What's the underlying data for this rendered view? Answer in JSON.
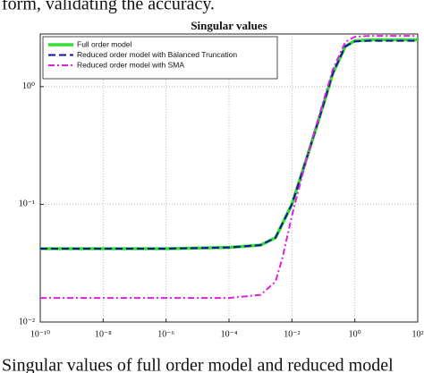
{
  "text_top": "form, validating the accuracy.",
  "caption": "Singular values of full order model and reduced model",
  "chart_data": {
    "type": "line",
    "title": "Singular values",
    "xscale": "log",
    "yscale": "log",
    "grid": true,
    "legend": "upper left",
    "xlim": [
      1e-10,
      100
    ],
    "ylim": [
      0.01,
      2.8
    ],
    "xticks": [
      {
        "value": 1e-10,
        "label": "10⁻¹⁰"
      },
      {
        "value": 1e-08,
        "label": "10⁻⁸"
      },
      {
        "value": 1e-06,
        "label": "10⁻⁶"
      },
      {
        "value": 0.0001,
        "label": "10⁻⁴"
      },
      {
        "value": 0.01,
        "label": "10⁻²"
      },
      {
        "value": 1,
        "label": "10⁰"
      },
      {
        "value": 100,
        "label": "10²"
      }
    ],
    "yticks": [
      {
        "value": 0.01,
        "label": "10⁻²"
      },
      {
        "value": 0.1,
        "label": "10⁻¹"
      },
      {
        "value": 1,
        "label": "10⁰"
      }
    ],
    "series": [
      {
        "name": "Full order model",
        "color": "#33dd33",
        "style": "solid",
        "x": [
          1e-10,
          1e-08,
          1e-06,
          0.0001,
          0.001,
          0.003,
          0.01,
          0.03,
          0.1,
          0.2,
          0.5,
          1,
          3,
          10,
          100
        ],
        "values": [
          0.042,
          0.042,
          0.042,
          0.043,
          0.045,
          0.052,
          0.1,
          0.25,
          0.7,
          1.3,
          2.2,
          2.45,
          2.5,
          2.5,
          2.5
        ]
      },
      {
        "name": "Reduced order model with Balanced Truncation",
        "color": "#1010a0",
        "style": "dashed",
        "x": [
          1e-10,
          1e-08,
          1e-06,
          0.0001,
          0.001,
          0.003,
          0.01,
          0.03,
          0.1,
          0.2,
          0.5,
          1,
          3,
          10,
          100
        ],
        "values": [
          0.042,
          0.042,
          0.042,
          0.043,
          0.045,
          0.052,
          0.1,
          0.25,
          0.7,
          1.3,
          2.2,
          2.42,
          2.45,
          2.45,
          2.45
        ]
      },
      {
        "name": "Reduced order model with SMA",
        "color": "#e020e0",
        "style": "dashdot",
        "x": [
          1e-10,
          1e-08,
          1e-06,
          0.0001,
          0.001,
          0.003,
          0.005,
          0.01,
          0.03,
          0.1,
          0.2,
          0.5,
          1,
          3,
          10,
          100
        ],
        "values": [
          0.016,
          0.016,
          0.016,
          0.016,
          0.017,
          0.022,
          0.035,
          0.08,
          0.25,
          0.75,
          1.4,
          2.4,
          2.65,
          2.7,
          2.7,
          2.7
        ]
      }
    ]
  }
}
